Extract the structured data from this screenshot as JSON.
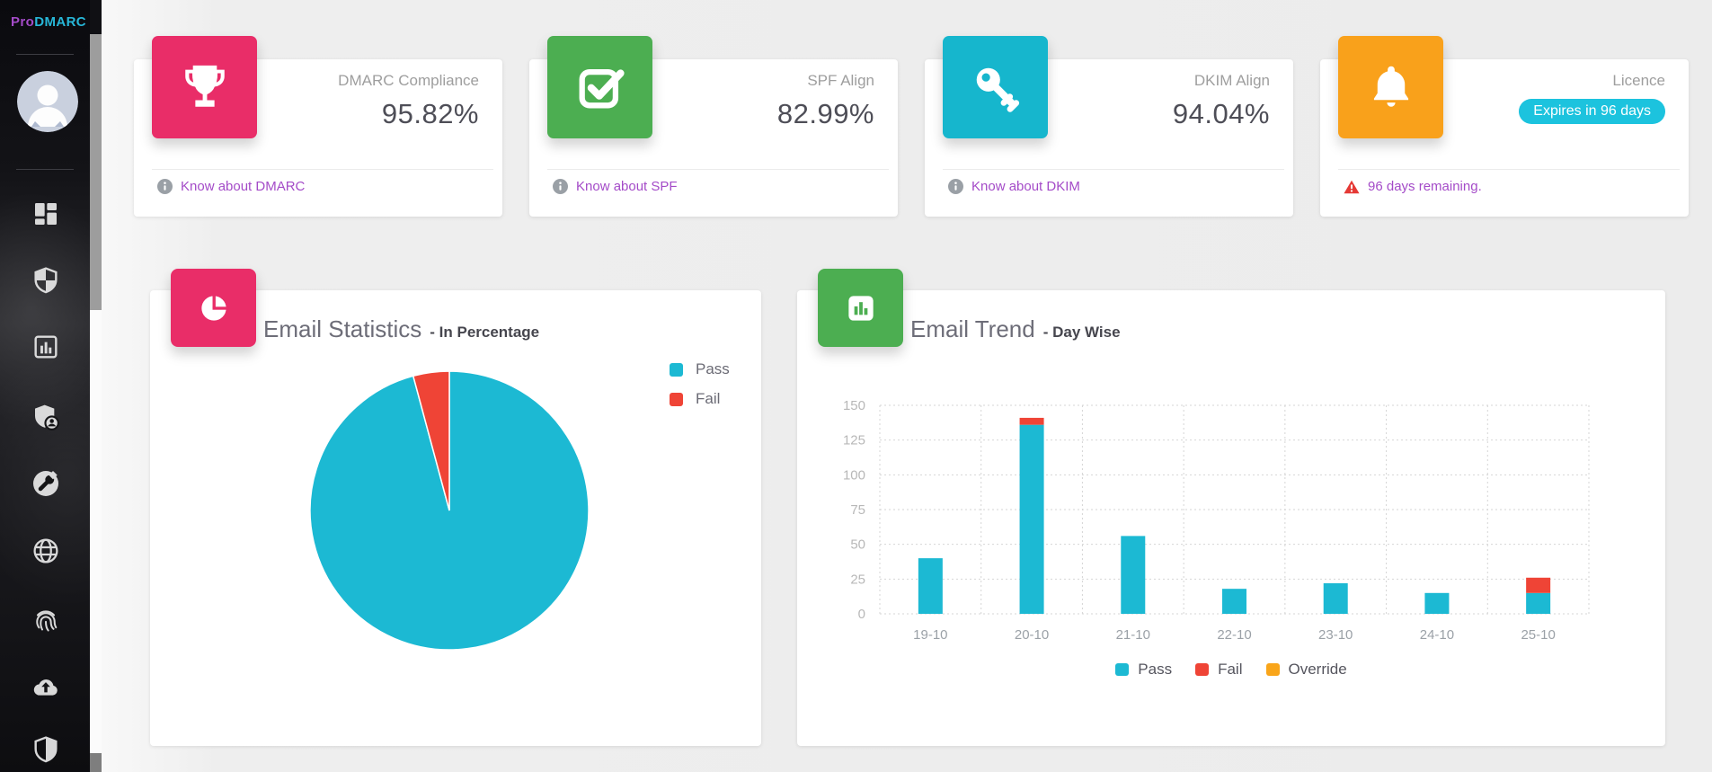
{
  "app": {
    "logo_pro": "Pro",
    "logo_dmarc": "DMARC"
  },
  "colors": {
    "link_purple": "#a44bc8",
    "pass_cyan": "#1cb9d3",
    "fail_red": "#ef4436",
    "override_orange": "#f9a51a"
  },
  "sidebar": {
    "items": [
      {
        "icon": "dashboard"
      },
      {
        "icon": "shield"
      },
      {
        "icon": "reports"
      },
      {
        "icon": "shield-user"
      },
      {
        "icon": "tools"
      },
      {
        "icon": "globe"
      },
      {
        "icon": "fingerprint"
      },
      {
        "icon": "cloud-upload"
      },
      {
        "icon": "shield-half"
      }
    ]
  },
  "stat_cards": [
    {
      "icon": "trophy",
      "tile_color": "#e92d68",
      "label": "DMARC Compliance",
      "value": "95.82%",
      "footer": "Know about DMARC"
    },
    {
      "icon": "check-square",
      "tile_color": "#4cae51",
      "label": "SPF Align",
      "value": "82.99%",
      "footer": "Know about SPF"
    },
    {
      "icon": "key",
      "tile_color": "#16b6cd",
      "label": "DKIM Align",
      "value": "94.04%",
      "footer": "Know about DKIM"
    },
    {
      "icon": "bell",
      "tile_color": "#f9a11b",
      "label": "Licence",
      "badge": "Expires in 96 days",
      "badge_color": "#1cc3de",
      "footer": "96 days remaining."
    }
  ],
  "chart_data": [
    {
      "type": "pie",
      "title": "Email Statistics",
      "subtitle": "- In Percentage",
      "labels": [
        "Pass",
        "Fail"
      ],
      "values": [
        95.82,
        4.18
      ],
      "colors": [
        "#1cb9d3",
        "#ef4436"
      ],
      "legend_position": "right-top"
    },
    {
      "type": "bar",
      "stacked": true,
      "title": "Email Trend",
      "subtitle": "- Day Wise",
      "categories": [
        "19-10",
        "20-10",
        "21-10",
        "22-10",
        "23-10",
        "24-10",
        "25-10"
      ],
      "series": [
        {
          "name": "Pass",
          "color": "#1cb9d3",
          "values": [
            40,
            136,
            56,
            18,
            22,
            15,
            15
          ]
        },
        {
          "name": "Fail",
          "color": "#ef4436",
          "values": [
            0,
            5,
            0,
            0,
            0,
            0,
            11
          ]
        },
        {
          "name": "Override",
          "color": "#f9a51a",
          "values": [
            0,
            0,
            0,
            0,
            0,
            0,
            0
          ]
        }
      ],
      "ylim": [
        0,
        150
      ],
      "yticks": [
        0,
        25,
        50,
        75,
        100,
        125,
        150
      ],
      "grid": true,
      "legend_position": "bottom"
    }
  ]
}
